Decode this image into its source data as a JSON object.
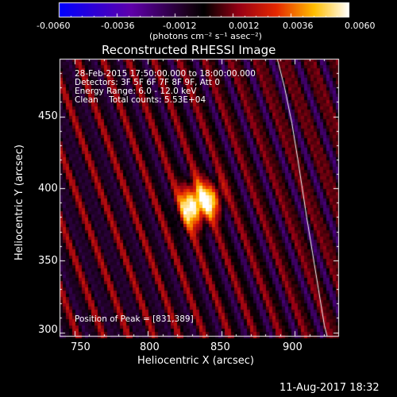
{
  "colorbar": {
    "tick_labels": [
      "-0.0060",
      "-0.0036",
      "-0.0012",
      "0.0012",
      "0.0036",
      "0.0060"
    ],
    "unit_label": "(photons cm⁻² s⁻¹ asec⁻²)"
  },
  "plot": {
    "title": "Reconstructed RHESSI Image",
    "x_label": "Heliocentric X (arcsec)",
    "y_label": "Heliocentric Y (arcsec)",
    "x_ticks": [
      "750",
      "800",
      "850",
      "900"
    ],
    "y_ticks": [
      "450",
      "400",
      "350",
      "300"
    ]
  },
  "info": {
    "line1": "28-Feb-2015 17:50:00.000 to 18:00:00.000",
    "line2": "Detectors: 3F 5F 6F 7F 8F 9F, Att 0",
    "line3": "Energy Range: 6.0 - 12.0 keV",
    "line4": "Clean    Total counts: 5.53E+04",
    "peak": "Position of Peak = [831,389]"
  },
  "footer": {
    "date": "11-Aug-2017 18:32"
  },
  "chart_data": {
    "type": "heatmap",
    "title": "Reconstructed RHESSI Image",
    "xlabel": "Heliocentric X (arcsec)",
    "ylabel": "Heliocentric Y (arcsec)",
    "xlim": [
      740,
      930
    ],
    "ylim": [
      297,
      490
    ],
    "colorbar_range": [
      -0.006,
      0.006
    ],
    "peak_position": [
      831,
      389
    ],
    "colormap": "blue-purple-black-red-yellow-white"
  }
}
